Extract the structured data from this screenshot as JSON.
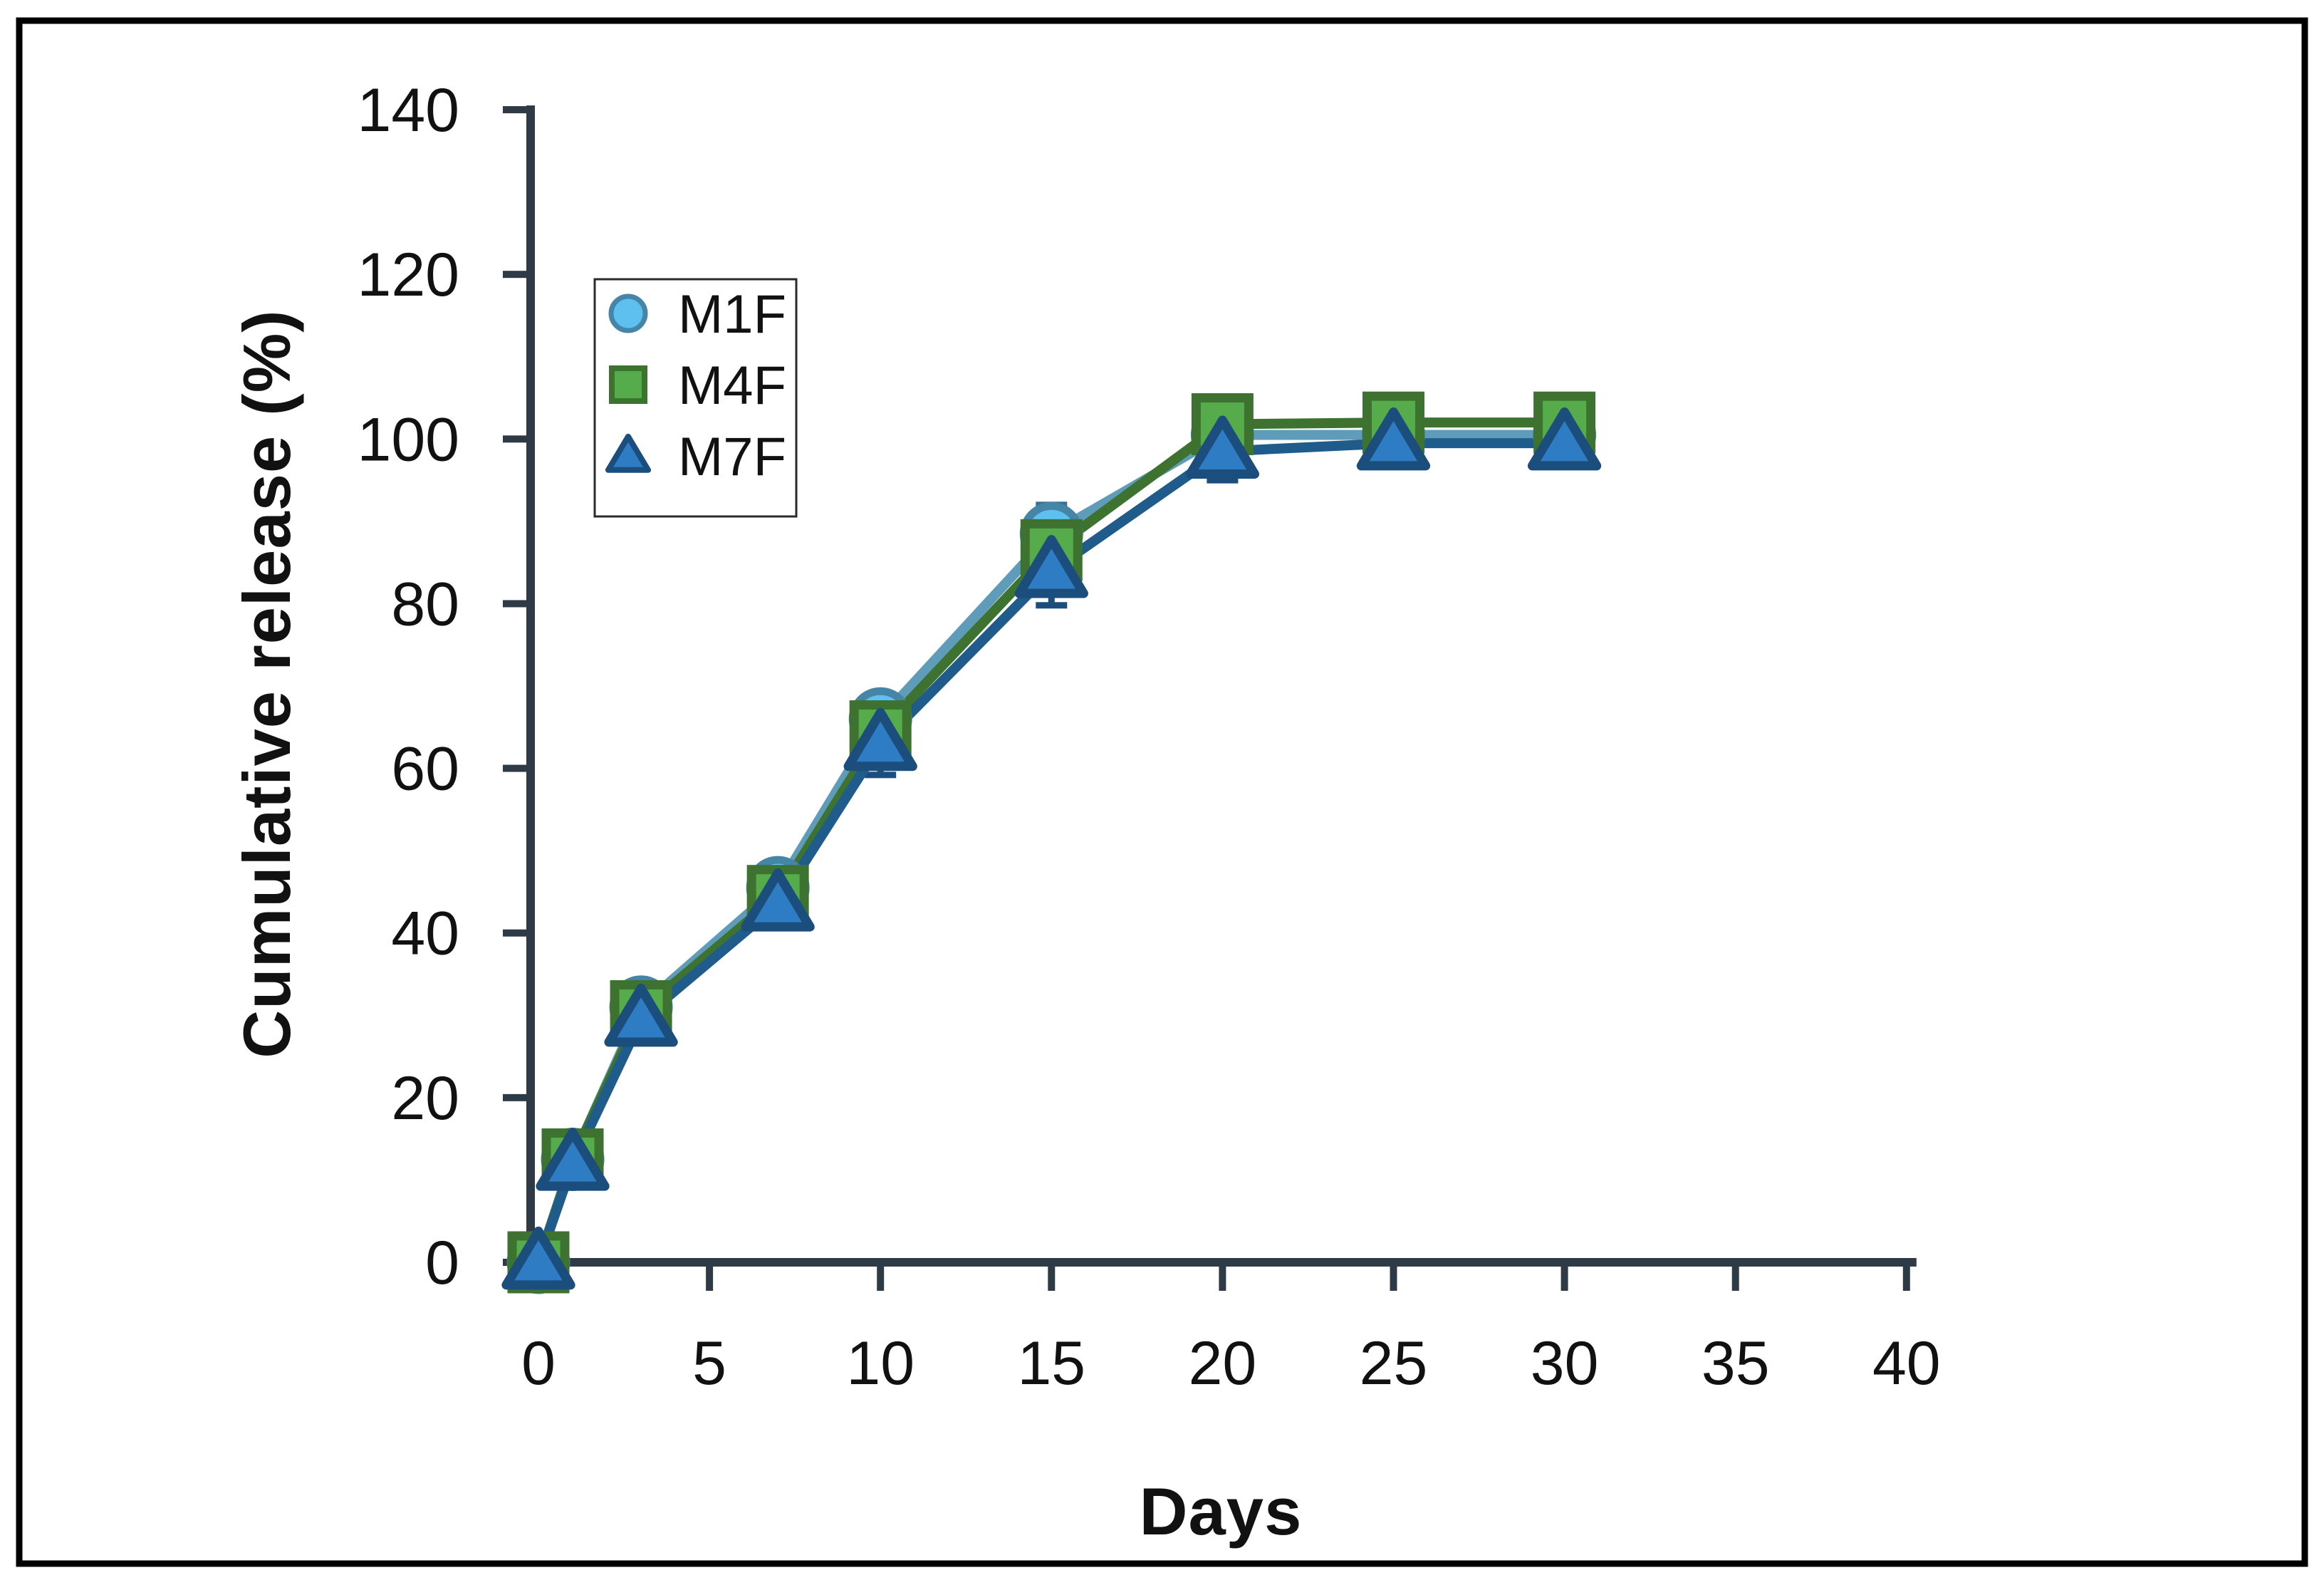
{
  "figure": {
    "background": "#ffffff",
    "frame_color": "#000000"
  },
  "chart_data": {
    "type": "line",
    "title": "",
    "xlabel": "Days",
    "ylabel": "Cumulative release (%)",
    "x": [
      0,
      1,
      3,
      7,
      10,
      15,
      20,
      25,
      30
    ],
    "x_ticks": [
      0,
      5,
      10,
      15,
      20,
      25,
      30,
      35,
      40
    ],
    "y_ticks": [
      0,
      20,
      40,
      60,
      80,
      100,
      120,
      140
    ],
    "xlim": [
      0,
      40
    ],
    "ylim": [
      0,
      140
    ],
    "grid": false,
    "legend_position": "upper-left-inside",
    "axis_color": "#2e3b47",
    "tick_label_color": "#111111",
    "series": [
      {
        "name": "M1F",
        "marker": "circle",
        "values": [
          0,
          12.5,
          31,
          45.5,
          66,
          88.5,
          100.5,
          100.5,
          100.5
        ],
        "errors": [
          0,
          0.8,
          1.2,
          1.5,
          2,
          3.5,
          2,
          1.5,
          1.5
        ],
        "line_color": "#5f9cba",
        "marker_fill": "#5dc0ee",
        "marker_stroke": "#4586a8",
        "error_color": "#3c7091"
      },
      {
        "name": "M4F",
        "marker": "square",
        "values": [
          0,
          12.5,
          30.5,
          44.5,
          64.5,
          86.5,
          101.8,
          102,
          102
        ],
        "errors": [
          0,
          1,
          1.5,
          1.8,
          2,
          2.5,
          2.8,
          2.2,
          2.2
        ],
        "line_color": "#3e7230",
        "marker_fill": "#56ac4a",
        "marker_stroke": "#3e7230",
        "error_color": "#35622a"
      },
      {
        "name": "M7F",
        "marker": "triangle",
        "values": [
          0,
          12,
          29.5,
          43.5,
          63,
          84,
          98.5,
          99.5,
          99.5
        ],
        "errors": [
          0,
          1,
          1.5,
          2,
          3.8,
          4.2,
          3.5,
          2,
          2
        ],
        "line_color": "#1f5c8c",
        "marker_fill": "#2e7cc3",
        "marker_stroke": "#1b4d7d",
        "error_color": "#1b4d7d"
      }
    ]
  }
}
